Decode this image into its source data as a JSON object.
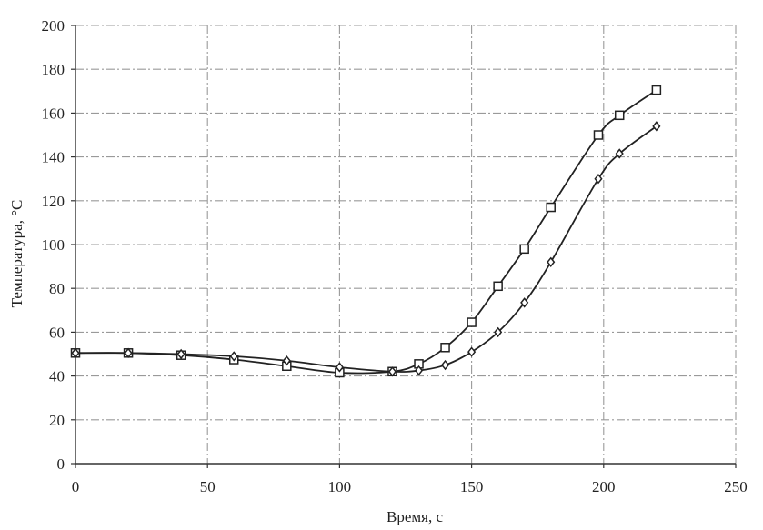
{
  "chart_data": {
    "type": "line",
    "title": "",
    "xlabel": "Время, с",
    "ylabel": "Температура, °С",
    "xlim": [
      0,
      250
    ],
    "ylim": [
      0,
      200
    ],
    "xticks": [
      0,
      50,
      100,
      150,
      200,
      250
    ],
    "yticks": [
      0,
      20,
      40,
      60,
      80,
      100,
      120,
      140,
      160,
      180,
      200
    ],
    "grid": true,
    "grid_style": "dash-dot",
    "legend": "none",
    "line_color": "#222222",
    "grid_color": "#9a9a9a",
    "series": [
      {
        "marker": "square",
        "x": [
          0,
          20,
          40,
          60,
          80,
          100,
          120,
          130,
          140,
          150,
          160,
          170,
          180,
          198,
          206,
          220
        ],
        "y": [
          50.5,
          50.5,
          49.5,
          47.5,
          44.5,
          41.5,
          42,
          45.5,
          53,
          64.5,
          81,
          98,
          117,
          150,
          159,
          170.5
        ]
      },
      {
        "marker": "diamond",
        "x": [
          0,
          20,
          40,
          60,
          80,
          100,
          120,
          130,
          140,
          150,
          160,
          170,
          180,
          198,
          206,
          220
        ],
        "y": [
          50.5,
          50.5,
          50,
          49,
          47,
          44,
          42,
          42.5,
          45,
          51,
          60,
          73.5,
          92,
          130,
          141.5,
          154
        ]
      }
    ]
  }
}
